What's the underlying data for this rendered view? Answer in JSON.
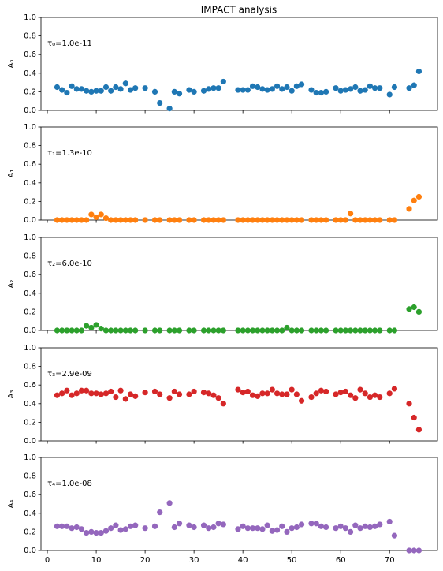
{
  "chart_data": {
    "type": "scatter",
    "title": "IMPACT analysis",
    "x": [
      2,
      3,
      4,
      5,
      6,
      7,
      8,
      9,
      10,
      11,
      12,
      13,
      14,
      15,
      16,
      17,
      18,
      20,
      22,
      23,
      25,
      26,
      27,
      29,
      30,
      32,
      33,
      34,
      35,
      36,
      39,
      40,
      41,
      42,
      43,
      44,
      45,
      46,
      47,
      48,
      49,
      50,
      51,
      52,
      54,
      55,
      56,
      57,
      59,
      60,
      61,
      62,
      63,
      64,
      65,
      66,
      67,
      68,
      70,
      71,
      74,
      75,
      76
    ],
    "xlim": [
      -1.3,
      79.8
    ],
    "xticks": [
      0,
      10,
      20,
      30,
      40,
      50,
      60,
      70
    ],
    "ylim": [
      0,
      1
    ],
    "yticks": [
      {
        "value": 0,
        "label": "0.0"
      },
      {
        "value": 0.2,
        "label": "0.2"
      },
      {
        "value": 0.4,
        "label": "0.4"
      },
      {
        "value": 0.6,
        "label": "0.6"
      },
      {
        "value": 0.8,
        "label": "0.8"
      },
      {
        "value": 1,
        "label": "1.0"
      }
    ],
    "panels": [
      {
        "ylabel": "A₀",
        "annotation": "τ₀=1.0e-11",
        "color": "#1f77b4",
        "values": [
          0.25,
          0.22,
          0.19,
          0.26,
          0.23,
          0.23,
          0.21,
          0.2,
          0.21,
          0.21,
          0.25,
          0.21,
          0.25,
          0.23,
          0.29,
          0.22,
          0.24,
          0.24,
          0.2,
          0.08,
          0.02,
          0.2,
          0.18,
          0.22,
          0.2,
          0.21,
          0.23,
          0.24,
          0.24,
          0.31,
          0.22,
          0.22,
          0.22,
          0.26,
          0.25,
          0.23,
          0.22,
          0.23,
          0.26,
          0.23,
          0.25,
          0.21,
          0.26,
          0.28,
          0.22,
          0.19,
          0.19,
          0.2,
          0.24,
          0.21,
          0.22,
          0.23,
          0.25,
          0.21,
          0.22,
          0.26,
          0.24,
          0.24,
          0.17,
          0.25,
          0.24,
          0.27,
          0.42
        ]
      },
      {
        "ylabel": "A₁",
        "annotation": "τ₁=1.3e-10",
        "color": "#ff7f0e",
        "values": [
          0,
          0,
          0,
          0,
          0,
          0,
          0,
          0.06,
          0.03,
          0.06,
          0.02,
          0,
          0,
          0,
          0,
          0,
          0,
          0,
          0,
          0,
          0,
          0,
          0,
          0,
          0,
          0,
          0,
          0,
          0,
          0,
          0,
          0,
          0,
          0,
          0,
          0,
          0,
          0,
          0,
          0,
          0,
          0,
          0,
          0,
          0,
          0,
          0,
          0,
          0,
          0,
          0,
          0.07,
          0,
          0,
          0,
          0,
          0,
          0,
          0,
          0,
          0.12,
          0.21,
          0.25
        ]
      },
      {
        "ylabel": "A₂",
        "annotation": "τ₂=6.0e-10",
        "color": "#2ca02c",
        "values": [
          0,
          0,
          0,
          0,
          0,
          0,
          0.05,
          0.03,
          0.06,
          0.02,
          0,
          0,
          0,
          0,
          0,
          0,
          0,
          0,
          0,
          0,
          0,
          0,
          0,
          0,
          0,
          0,
          0,
          0,
          0,
          0,
          0,
          0,
          0,
          0,
          0,
          0,
          0,
          0,
          0,
          0,
          0.03,
          0,
          0,
          0,
          0,
          0,
          0,
          0,
          0,
          0,
          0,
          0,
          0,
          0,
          0,
          0,
          0,
          0,
          0,
          0,
          0.23,
          0.25,
          0.2
        ]
      },
      {
        "ylabel": "A₃",
        "annotation": "τ₃=2.9e-09",
        "color": "#d62728",
        "values": [
          0.49,
          0.51,
          0.54,
          0.49,
          0.51,
          0.54,
          0.54,
          0.51,
          0.51,
          0.5,
          0.51,
          0.53,
          0.47,
          0.54,
          0.45,
          0.5,
          0.48,
          0.52,
          0.53,
          0.5,
          0.46,
          0.53,
          0.5,
          0.5,
          0.53,
          0.52,
          0.51,
          0.49,
          0.46,
          0.4,
          0.55,
          0.52,
          0.53,
          0.49,
          0.48,
          0.51,
          0.51,
          0.55,
          0.51,
          0.5,
          0.5,
          0.55,
          0.5,
          0.43,
          0.47,
          0.51,
          0.54,
          0.53,
          0.5,
          0.52,
          0.53,
          0.49,
          0.46,
          0.55,
          0.51,
          0.47,
          0.49,
          0.47,
          0.51,
          0.56,
          0.4,
          0.25,
          0.12
        ]
      },
      {
        "ylabel": "A₄",
        "annotation": "τ₄=1.0e-08",
        "color": "#9467bd",
        "values": [
          0.26,
          0.26,
          0.26,
          0.24,
          0.25,
          0.23,
          0.19,
          0.2,
          0.19,
          0.19,
          0.21,
          0.24,
          0.27,
          0.22,
          0.23,
          0.26,
          0.27,
          0.24,
          0.26,
          0.41,
          0.51,
          0.25,
          0.29,
          0.27,
          0.25,
          0.27,
          0.24,
          0.25,
          0.29,
          0.28,
          0.23,
          0.26,
          0.24,
          0.24,
          0.24,
          0.23,
          0.27,
          0.21,
          0.22,
          0.26,
          0.2,
          0.24,
          0.25,
          0.28,
          0.29,
          0.29,
          0.26,
          0.25,
          0.24,
          0.26,
          0.24,
          0.2,
          0.27,
          0.24,
          0.26,
          0.25,
          0.26,
          0.28,
          0.31,
          0.16,
          0,
          0,
          0
        ]
      }
    ]
  }
}
